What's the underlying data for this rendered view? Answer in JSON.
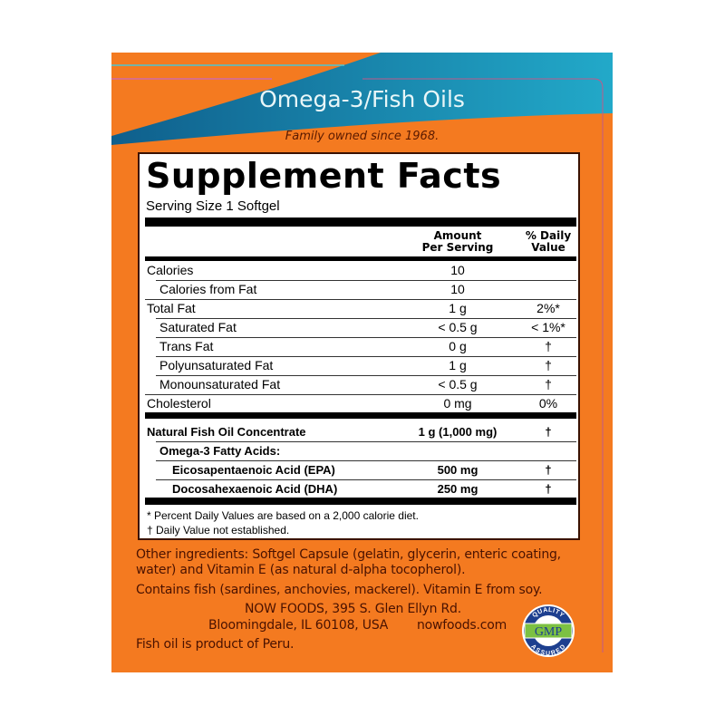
{
  "header": {
    "title": "Omega-3/Fish Oils",
    "tagline": "Family owned since 1968."
  },
  "facts": {
    "title": "Supplement Facts",
    "serving_size": "Serving Size 1 Softgel",
    "col_amount": [
      "Amount",
      "Per Serving"
    ],
    "col_dv": [
      "% Daily",
      "Value"
    ],
    "rows": [
      {
        "name": "Calories",
        "amount": "10",
        "dv": "",
        "indent": 0,
        "bold": false
      },
      {
        "name": "Calories from Fat",
        "amount": "10",
        "dv": "",
        "indent": 1,
        "bold": false
      },
      {
        "name": "Total Fat",
        "amount": "1 g",
        "dv": "2%*",
        "indent": 0,
        "bold": false
      },
      {
        "name": "Saturated Fat",
        "amount": "< 0.5 g",
        "dv": "< 1%*",
        "indent": 1,
        "bold": false
      },
      {
        "name": "Trans Fat",
        "amount": "0 g",
        "dv": "†",
        "indent": 1,
        "bold": false
      },
      {
        "name": "Polyunsaturated Fat",
        "amount": "1 g",
        "dv": "†",
        "indent": 1,
        "bold": false
      },
      {
        "name": "Monounsaturated Fat",
        "amount": "< 0.5 g",
        "dv": "†",
        "indent": 1,
        "bold": false
      },
      {
        "name": "Cholesterol",
        "amount": "0 mg",
        "dv": "0%",
        "indent": 0,
        "bold": false
      }
    ],
    "rows2": [
      {
        "name": "Natural Fish Oil Concentrate",
        "amount": "1 g (1,000 mg)",
        "dv": "†",
        "indent": 0,
        "bold": true
      },
      {
        "name": "Omega-3 Fatty Acids:",
        "amount": "",
        "dv": "",
        "indent": 1,
        "bold": true
      },
      {
        "name": "Eicosapentaenoic Acid (EPA)",
        "amount": "500 mg",
        "dv": "†",
        "indent": 2,
        "bold": true
      },
      {
        "name": "Docosahexaenoic Acid (DHA)",
        "amount": "250 mg",
        "dv": "†",
        "indent": 2,
        "bold": true
      }
    ],
    "footnotes": [
      "* Percent Daily Values are based on a 2,000 calorie diet.",
      "† Daily Value not established."
    ]
  },
  "other": {
    "ingredients": [
      "Other ingredients: Softgel Capsule (gelatin, glycerin, enteric coating,",
      "water) and Vitamin E (as natural d-alpha tocopherol)."
    ],
    "allergens": "Contains fish (sardines, anchovies, mackerel).  Vitamin E from soy.",
    "address1": "NOW FOODS, 395 S. Glen Ellyn Rd.",
    "address2": "Bloomingdale, IL 60108, USA",
    "website": "nowfoods.com",
    "origin": "Fish oil is product of Peru."
  },
  "badge": {
    "text": "GMP",
    "ring_top": "QUALITY",
    "ring_bottom": "ASSURED"
  },
  "colors": {
    "orange": "#f47a20",
    "blue": "#1a7fa8",
    "text": "#4a1200"
  }
}
